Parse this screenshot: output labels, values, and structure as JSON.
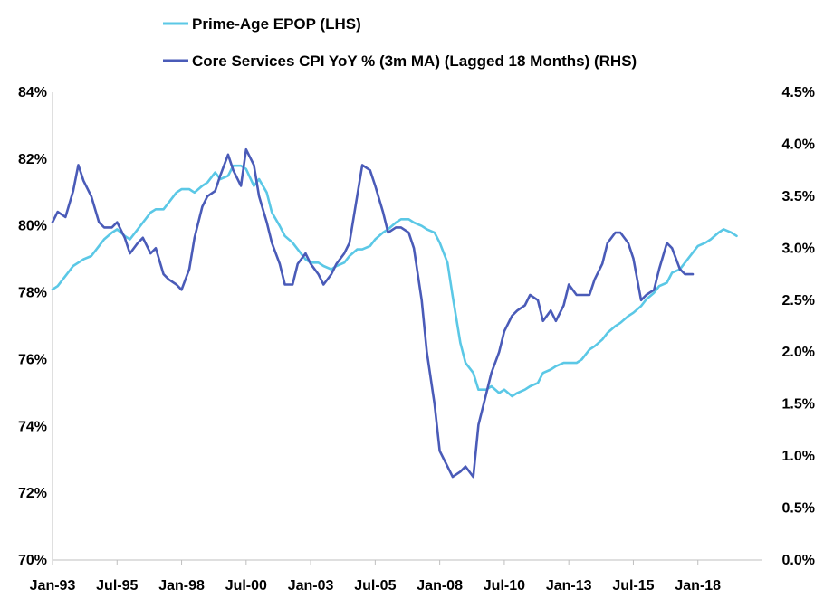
{
  "chart_data": {
    "type": "line",
    "title": "",
    "xlabel": "",
    "x_tick_labels": [
      "Jan-93",
      "Jul-95",
      "Jan-98",
      "Jul-00",
      "Jan-03",
      "Jul-05",
      "Jan-08",
      "Jul-10",
      "Jan-13",
      "Jul-15",
      "Jan-18"
    ],
    "x_tick_years": [
      1993.0,
      1995.5,
      1998.0,
      2000.5,
      2003.0,
      2005.5,
      2008.0,
      2010.5,
      2013.0,
      2015.5,
      2018.0
    ],
    "xlim": [
      1993.0,
      2020.5
    ],
    "y_left": {
      "label": "",
      "lim": [
        70,
        84
      ],
      "ticks": [
        70,
        72,
        74,
        76,
        78,
        80,
        82,
        84
      ],
      "tick_labels": [
        "70%",
        "72%",
        "74%",
        "76%",
        "78%",
        "80%",
        "82%",
        "84%"
      ]
    },
    "y_right": {
      "label": "",
      "lim": [
        0.0,
        4.5
      ],
      "ticks": [
        0.0,
        0.5,
        1.0,
        1.5,
        2.0,
        2.5,
        3.0,
        3.5,
        4.0,
        4.5
      ],
      "tick_labels": [
        "0.0%",
        "0.5%",
        "1.0%",
        "1.5%",
        "2.0%",
        "2.5%",
        "3.0%",
        "3.5%",
        "4.0%",
        "4.5%"
      ]
    },
    "legend_position": "top-center",
    "series": [
      {
        "name": "Prime-Age EPOP (LHS)",
        "axis": "left",
        "color": "#5BC8E6",
        "x": [
          1993.0,
          1993.2,
          1993.5,
          1993.8,
          1994.0,
          1994.2,
          1994.5,
          1994.8,
          1995.0,
          1995.3,
          1995.5,
          1995.8,
          1996.0,
          1996.3,
          1996.5,
          1996.8,
          1997.0,
          1997.3,
          1997.5,
          1997.8,
          1998.0,
          1998.3,
          1998.5,
          1998.8,
          1999.0,
          1999.3,
          1999.5,
          1999.8,
          2000.0,
          2000.3,
          2000.5,
          2000.8,
          2001.0,
          2001.3,
          2001.5,
          2001.8,
          2002.0,
          2002.3,
          2002.5,
          2002.8,
          2003.0,
          2003.3,
          2003.5,
          2003.8,
          2004.0,
          2004.3,
          2004.5,
          2004.8,
          2005.0,
          2005.3,
          2005.5,
          2005.8,
          2006.0,
          2006.3,
          2006.5,
          2006.8,
          2007.0,
          2007.3,
          2007.5,
          2007.8,
          2008.0,
          2008.3,
          2008.5,
          2008.8,
          2009.0,
          2009.3,
          2009.5,
          2009.8,
          2010.0,
          2010.3,
          2010.5,
          2010.8,
          2011.0,
          2011.3,
          2011.5,
          2011.8,
          2012.0,
          2012.3,
          2012.5,
          2012.8,
          2013.0,
          2013.3,
          2013.5,
          2013.8,
          2014.0,
          2014.3,
          2014.5,
          2014.8,
          2015.0,
          2015.3,
          2015.5,
          2015.8,
          2016.0,
          2016.3,
          2016.5,
          2016.8,
          2017.0,
          2017.3,
          2017.5,
          2017.8,
          2018.0,
          2018.3,
          2018.5,
          2018.8,
          2019.0,
          2019.3,
          2019.5
        ],
        "values": [
          78.1,
          78.2,
          78.5,
          78.8,
          78.9,
          79.0,
          79.1,
          79.4,
          79.6,
          79.8,
          79.9,
          79.7,
          79.6,
          79.9,
          80.1,
          80.4,
          80.5,
          80.5,
          80.7,
          81.0,
          81.1,
          81.1,
          81.0,
          81.2,
          81.3,
          81.6,
          81.4,
          81.5,
          81.8,
          81.8,
          81.7,
          81.2,
          81.4,
          81.0,
          80.4,
          80.0,
          79.7,
          79.5,
          79.3,
          79.0,
          78.9,
          78.9,
          78.8,
          78.7,
          78.8,
          78.9,
          79.1,
          79.3,
          79.3,
          79.4,
          79.6,
          79.8,
          79.9,
          80.1,
          80.2,
          80.2,
          80.1,
          80.0,
          79.9,
          79.8,
          79.5,
          78.9,
          77.9,
          76.5,
          75.9,
          75.6,
          75.1,
          75.1,
          75.2,
          75.0,
          75.1,
          74.9,
          75.0,
          75.1,
          75.2,
          75.3,
          75.6,
          75.7,
          75.8,
          75.9,
          75.9,
          75.9,
          76.0,
          76.3,
          76.4,
          76.6,
          76.8,
          77.0,
          77.1,
          77.3,
          77.4,
          77.6,
          77.8,
          78.0,
          78.2,
          78.3,
          78.6,
          78.7,
          78.9,
          79.2,
          79.4,
          79.5,
          79.6,
          79.8,
          79.9,
          79.8,
          79.7
        ]
      },
      {
        "name": "Core Services CPI YoY % (3m MA) (Lagged 18 Months) (RHS)",
        "axis": "right",
        "color": "#4A5BB8",
        "x": [
          1993.0,
          1993.2,
          1993.5,
          1993.8,
          1994.0,
          1994.2,
          1994.5,
          1994.8,
          1995.0,
          1995.3,
          1995.5,
          1995.8,
          1996.0,
          1996.3,
          1996.5,
          1996.8,
          1997.0,
          1997.3,
          1997.5,
          1997.8,
          1998.0,
          1998.3,
          1998.5,
          1998.8,
          1999.0,
          1999.3,
          1999.5,
          1999.8,
          2000.0,
          2000.3,
          2000.5,
          2000.8,
          2001.0,
          2001.3,
          2001.5,
          2001.8,
          2002.0,
          2002.3,
          2002.5,
          2002.8,
          2003.0,
          2003.3,
          2003.5,
          2003.8,
          2004.0,
          2004.3,
          2004.5,
          2004.8,
          2005.0,
          2005.3,
          2005.5,
          2005.8,
          2006.0,
          2006.3,
          2006.5,
          2006.8,
          2007.0,
          2007.3,
          2007.5,
          2007.8,
          2008.0,
          2008.3,
          2008.5,
          2008.8,
          2009.0,
          2009.3,
          2009.5,
          2009.8,
          2010.0,
          2010.3,
          2010.5,
          2010.8,
          2011.0,
          2011.3,
          2011.5,
          2011.8,
          2012.0,
          2012.3,
          2012.5,
          2012.8,
          2013.0,
          2013.3,
          2013.5,
          2013.8,
          2014.0,
          2014.3,
          2014.5,
          2014.8,
          2015.0,
          2015.3,
          2015.5,
          2015.8,
          2016.0,
          2016.3,
          2016.5,
          2016.8,
          2017.0,
          2017.3,
          2017.5,
          2017.8
        ],
        "values": [
          3.25,
          3.35,
          3.3,
          3.55,
          3.8,
          3.65,
          3.5,
          3.25,
          3.2,
          3.2,
          3.25,
          3.1,
          2.95,
          3.05,
          3.1,
          2.95,
          3.0,
          2.75,
          2.7,
          2.65,
          2.6,
          2.8,
          3.1,
          3.4,
          3.5,
          3.55,
          3.7,
          3.9,
          3.75,
          3.6,
          3.95,
          3.8,
          3.5,
          3.25,
          3.05,
          2.85,
          2.65,
          2.65,
          2.85,
          2.95,
          2.85,
          2.75,
          2.65,
          2.75,
          2.85,
          2.95,
          3.05,
          3.5,
          3.8,
          3.75,
          3.6,
          3.35,
          3.15,
          3.2,
          3.2,
          3.15,
          3.0,
          2.5,
          2.0,
          1.5,
          1.05,
          0.9,
          0.8,
          0.85,
          0.9,
          0.8,
          1.3,
          1.6,
          1.8,
          2.0,
          2.2,
          2.35,
          2.4,
          2.45,
          2.55,
          2.5,
          2.3,
          2.4,
          2.3,
          2.45,
          2.65,
          2.55,
          2.55,
          2.55,
          2.7,
          2.85,
          3.05,
          3.15,
          3.15,
          3.05,
          2.9,
          2.5,
          2.55,
          2.6,
          2.8,
          3.05,
          3.0,
          2.8,
          2.75,
          2.75
        ]
      }
    ]
  }
}
